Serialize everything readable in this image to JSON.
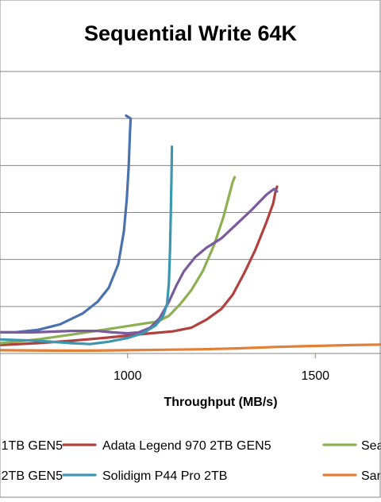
{
  "chart_data": {
    "type": "line",
    "title": "Sequential Write 64K",
    "xlabel": "Throughput (MB/s)",
    "ylabel": "",
    "xlim": [
      660,
      1675
    ],
    "ylim": [
      0,
      6
    ],
    "x_ticks": [
      1000,
      1500
    ],
    "x_tick_labels": [
      "1000",
      "1500"
    ],
    "y_gridlines": [
      1,
      2,
      3,
      4,
      5,
      6
    ],
    "grid": true,
    "legend_position": "bottom",
    "colors": {
      "axis": "#868686",
      "grid": "#868686",
      "frame": "#868686",
      "text": "#000000"
    },
    "series": [
      {
        "name": "1TB GEN5",
        "color": "#4A73AE",
        "points": [
          [
            660,
            0.45
          ],
          [
            700,
            0.45
          ],
          [
            760,
            0.5
          ],
          [
            820,
            0.62
          ],
          [
            880,
            0.85
          ],
          [
            920,
            1.1
          ],
          [
            950,
            1.4
          ],
          [
            975,
            1.9
          ],
          [
            990,
            2.6
          ],
          [
            998,
            3.3
          ],
          [
            1003,
            4.0
          ],
          [
            1006,
            4.65
          ],
          [
            1008,
            5.0
          ],
          [
            1002,
            5.03
          ],
          [
            996,
            5.06
          ]
        ]
      },
      {
        "name": "Adata Legend 970 2TB GEN5",
        "color": "#B0413E",
        "points": [
          [
            660,
            0.18
          ],
          [
            760,
            0.22
          ],
          [
            850,
            0.27
          ],
          [
            950,
            0.34
          ],
          [
            1050,
            0.42
          ],
          [
            1120,
            0.47
          ],
          [
            1170,
            0.55
          ],
          [
            1210,
            0.72
          ],
          [
            1250,
            0.95
          ],
          [
            1280,
            1.25
          ],
          [
            1310,
            1.7
          ],
          [
            1340,
            2.2
          ],
          [
            1370,
            2.8
          ],
          [
            1388,
            3.2
          ],
          [
            1394,
            3.45
          ],
          [
            1398,
            3.55
          ]
        ]
      },
      {
        "name": "Sea",
        "color": "#8DB052",
        "points": [
          [
            660,
            0.22
          ],
          [
            760,
            0.3
          ],
          [
            850,
            0.4
          ],
          [
            950,
            0.52
          ],
          [
            1030,
            0.62
          ],
          [
            1080,
            0.68
          ],
          [
            1110,
            0.8
          ],
          [
            1140,
            1.05
          ],
          [
            1170,
            1.35
          ],
          [
            1200,
            1.75
          ],
          [
            1230,
            2.3
          ],
          [
            1255,
            2.9
          ],
          [
            1270,
            3.35
          ],
          [
            1280,
            3.65
          ],
          [
            1285,
            3.75
          ]
        ]
      },
      {
        "name": "2TB GEN5",
        "color": "#7A5B9E",
        "points": [
          [
            660,
            0.45
          ],
          [
            750,
            0.45
          ],
          [
            850,
            0.48
          ],
          [
            920,
            0.48
          ],
          [
            960,
            0.45
          ],
          [
            1000,
            0.43
          ],
          [
            1030,
            0.45
          ],
          [
            1060,
            0.55
          ],
          [
            1085,
            0.75
          ],
          [
            1110,
            1.1
          ],
          [
            1130,
            1.45
          ],
          [
            1150,
            1.75
          ],
          [
            1180,
            2.05
          ],
          [
            1210,
            2.25
          ],
          [
            1250,
            2.45
          ],
          [
            1290,
            2.75
          ],
          [
            1330,
            3.05
          ],
          [
            1370,
            3.38
          ],
          [
            1390,
            3.5
          ],
          [
            1398,
            3.45
          ]
        ]
      },
      {
        "name": "Solidigm P44 Pro 2TB",
        "color": "#3E97B0",
        "points": [
          [
            660,
            0.3
          ],
          [
            760,
            0.27
          ],
          [
            850,
            0.22
          ],
          [
            900,
            0.2
          ],
          [
            950,
            0.25
          ],
          [
            1000,
            0.33
          ],
          [
            1040,
            0.43
          ],
          [
            1075,
            0.6
          ],
          [
            1095,
            0.8
          ],
          [
            1105,
            1.05
          ],
          [
            1110,
            1.5
          ],
          [
            1113,
            2.2
          ],
          [
            1115,
            3.0
          ],
          [
            1117,
            3.8
          ],
          [
            1118,
            4.4
          ]
        ]
      },
      {
        "name": "Sar",
        "color": "#E37F36",
        "points": [
          [
            660,
            0.07
          ],
          [
            800,
            0.06
          ],
          [
            900,
            0.06
          ],
          [
            1000,
            0.07
          ],
          [
            1100,
            0.08
          ],
          [
            1200,
            0.09
          ],
          [
            1300,
            0.11
          ],
          [
            1400,
            0.14
          ],
          [
            1500,
            0.16
          ],
          [
            1600,
            0.18
          ],
          [
            1675,
            0.19
          ]
        ]
      }
    ]
  }
}
